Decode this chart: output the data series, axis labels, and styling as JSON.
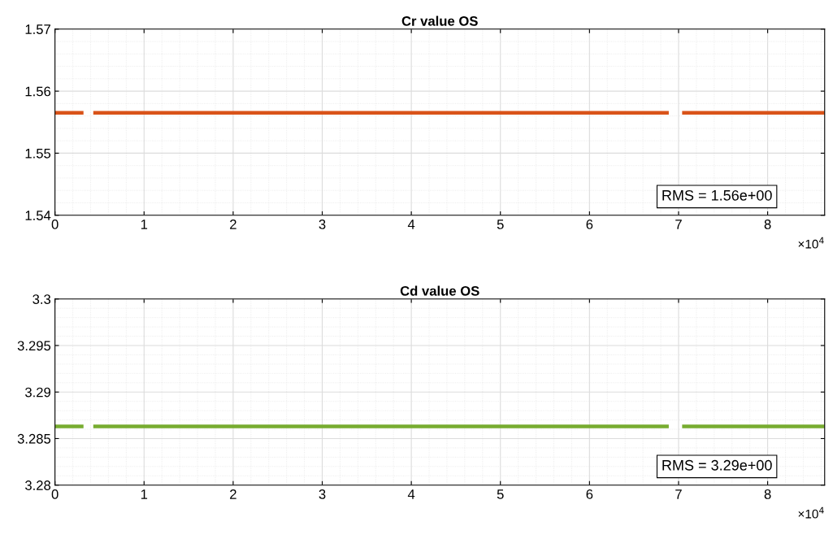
{
  "chart_data": [
    {
      "type": "line",
      "title": "Cr value OS",
      "marker": "none",
      "line_style": "solid",
      "grid": true,
      "x": [
        0,
        0.32,
        0.37,
        0.43,
        6.89,
        6.97,
        7.04,
        8.64
      ],
      "series": [
        {
          "color": "#d95319",
          "values": [
            1.5565,
            1.5565,
            null,
            1.5565,
            1.5565,
            null,
            1.5565,
            1.5565
          ]
        }
      ],
      "xlim": [
        0,
        8.64
      ],
      "xticks": [
        0,
        1,
        2,
        3,
        4,
        5,
        6,
        7,
        8
      ],
      "ylim": [
        1.54,
        1.57
      ],
      "yticks": [
        1.54,
        1.55,
        1.56,
        1.57
      ],
      "annotations": [
        "RMS = 1.56e+00",
        "×10$^{4}$"
      ]
    },
    {
      "type": "line",
      "title": "Cd value OS",
      "marker": "none",
      "line_style": "solid",
      "grid": true,
      "x": [
        0,
        0.32,
        0.37,
        0.43,
        6.89,
        6.97,
        7.04,
        8.64
      ],
      "series": [
        {
          "color": "#77ac30",
          "values": [
            3.2863,
            3.2863,
            null,
            3.2863,
            3.2863,
            null,
            3.2863,
            3.2863
          ]
        }
      ],
      "xlim": [
        0,
        8.64
      ],
      "xticks": [
        0,
        1,
        2,
        3,
        4,
        5,
        6,
        7,
        8
      ],
      "ylim": [
        3.28,
        3.3
      ],
      "yticks": [
        3.28,
        3.285,
        3.29,
        3.295,
        3.3
      ],
      "annotations": [
        "RMS = 3.29e+00",
        "×10$^{4}$"
      ]
    }
  ]
}
